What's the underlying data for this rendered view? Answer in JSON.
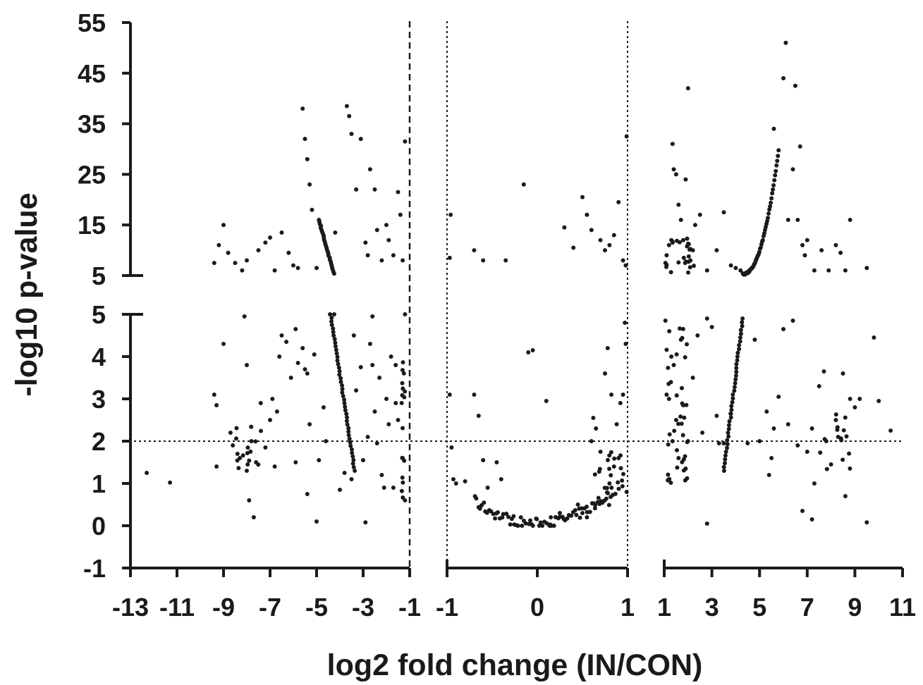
{
  "chart_data": {
    "type": "scatter",
    "title": "",
    "xlabel": "log2 fold change (IN/CON)",
    "ylabel": "-log10 p-value",
    "grid": false,
    "legend": "none",
    "point_color": "#1a1a1a",
    "x_panels": [
      {
        "xlim": [
          -13,
          -1
        ],
        "ticks": [
          -13,
          -11,
          -9,
          -7,
          -5,
          -3,
          -1
        ]
      },
      {
        "xlim": [
          -1,
          1
        ],
        "ticks": [
          -1,
          0,
          1
        ]
      },
      {
        "xlim": [
          1,
          11
        ],
        "ticks": [
          1,
          3,
          5,
          7,
          9,
          11
        ]
      }
    ],
    "y_segments": [
      {
        "ylim": [
          -1,
          5
        ],
        "ticks": [
          -1,
          0,
          1,
          2,
          3,
          4,
          5
        ]
      },
      {
        "ylim": [
          5,
          55
        ],
        "ticks": [
          5,
          15,
          25,
          35,
          45,
          55
        ]
      }
    ],
    "y_tick_labels": [
      "-1",
      "0",
      "1",
      "2",
      "3",
      "4",
      "5",
      "5",
      "15",
      "25",
      "35",
      "45",
      "55"
    ],
    "x_tick_labels": [
      "-13",
      "-11",
      "-9",
      "-7",
      "-5",
      "-3",
      "-1",
      "-1",
      "0",
      "1",
      "1",
      "3",
      "5",
      "7",
      "9",
      "11"
    ],
    "reference_lines": {
      "horizontal_y": 2,
      "vertical_x": [
        -1,
        1
      ],
      "horizontal_style": "dotted",
      "vertical_style": "dotted; dashed at left panel edge x=-1"
    },
    "series": [
      {
        "points": [
          [
            -12.3,
            1.25
          ],
          [
            -11.3,
            1.02
          ],
          [
            -9.4,
            3.1
          ],
          [
            -9.3,
            2.85
          ],
          [
            -9.3,
            1.4
          ],
          [
            -9.0,
            4.3
          ],
          [
            -8.7,
            2.2
          ],
          [
            -8.6,
            1.9
          ],
          [
            -8.4,
            1.7
          ],
          [
            -8.3,
            1.6
          ],
          [
            -8.1,
            4.95
          ],
          [
            -8.0,
            3.8
          ],
          [
            -8.0,
            1.3
          ],
          [
            -7.9,
            0.6
          ],
          [
            -7.8,
            2.0
          ],
          [
            -7.7,
            0.2
          ],
          [
            -7.6,
            1.5
          ],
          [
            -7.4,
            2.9
          ],
          [
            -7.2,
            1.85
          ],
          [
            -7.0,
            2.5
          ],
          [
            -6.9,
            3.0
          ],
          [
            -6.8,
            1.4
          ],
          [
            -6.7,
            2.7
          ],
          [
            -6.6,
            4.0
          ],
          [
            -6.5,
            4.5
          ],
          [
            -6.3,
            4.35
          ],
          [
            -6.1,
            3.5
          ],
          [
            -5.9,
            4.65
          ],
          [
            -5.9,
            1.5
          ],
          [
            -5.8,
            3.85
          ],
          [
            -5.6,
            4.2
          ],
          [
            -5.5,
            3.7
          ],
          [
            -5.4,
            3.6
          ],
          [
            -5.4,
            0.75
          ],
          [
            -5.3,
            2.4
          ],
          [
            -5.1,
            4.05
          ],
          [
            -5.0,
            0.1
          ],
          [
            -4.9,
            1.55
          ],
          [
            -4.7,
            2.8
          ],
          [
            -4.6,
            2.0
          ],
          [
            -4.0,
            0.85
          ],
          [
            -3.8,
            1.25
          ],
          [
            -3.5,
            1.1
          ],
          [
            -3.4,
            4.5
          ],
          [
            -3.3,
            3.2
          ],
          [
            -3.1,
            3.75
          ],
          [
            -3.0,
            1.55
          ],
          [
            -2.9,
            0.08
          ],
          [
            -2.8,
            2.1
          ],
          [
            -2.7,
            4.3
          ],
          [
            -2.6,
            4.95
          ],
          [
            -2.6,
            3.8
          ],
          [
            -2.5,
            2.7
          ],
          [
            -2.4,
            1.95
          ],
          [
            -2.3,
            3.5
          ],
          [
            -2.2,
            1.2
          ],
          [
            -2.1,
            0.9
          ],
          [
            -2.0,
            3.0
          ],
          [
            -1.9,
            2.4
          ],
          [
            -1.8,
            4.0
          ],
          [
            -1.7,
            0.9
          ],
          [
            -1.6,
            3.8
          ],
          [
            -1.6,
            2.9
          ],
          [
            -1.5,
            2.5
          ],
          [
            -1.3,
            1.6
          ],
          [
            -1.2,
            0.6
          ],
          [
            -9.4,
            7.5
          ],
          [
            -9.2,
            11
          ],
          [
            -9.0,
            15
          ],
          [
            -8.8,
            9.5
          ],
          [
            -8.5,
            7.5
          ],
          [
            -8.2,
            6
          ],
          [
            -8.0,
            8
          ],
          [
            -7.5,
            10
          ],
          [
            -7.2,
            11.5
          ],
          [
            -7.0,
            12.5
          ],
          [
            -6.8,
            6
          ],
          [
            -6.5,
            13.5
          ],
          [
            -6.2,
            9.5
          ],
          [
            -6.0,
            7
          ],
          [
            -5.8,
            6.5
          ],
          [
            -5.6,
            38
          ],
          [
            -5.5,
            32
          ],
          [
            -5.4,
            28
          ],
          [
            -5.3,
            23
          ],
          [
            -5.2,
            18
          ],
          [
            -5.0,
            6.5
          ],
          [
            -4.2,
            13.5
          ],
          [
            -3.7,
            38.5
          ],
          [
            -3.6,
            36.5
          ],
          [
            -3.5,
            33
          ],
          [
            -3.3,
            22
          ],
          [
            -3.1,
            32
          ],
          [
            -2.9,
            11.5
          ],
          [
            -2.8,
            9
          ],
          [
            -2.7,
            26
          ],
          [
            -2.5,
            22
          ],
          [
            -2.4,
            14
          ],
          [
            -2.2,
            8
          ],
          [
            -2.0,
            15
          ],
          [
            -1.9,
            12
          ],
          [
            -1.7,
            9
          ],
          [
            -1.5,
            21.5
          ],
          [
            -1.4,
            17
          ],
          [
            -1.3,
            8
          ],
          [
            -1.2,
            31.5
          ],
          [
            -1.2,
            5
          ],
          [
            -0.96,
            17
          ],
          [
            -0.97,
            8.5
          ],
          [
            -0.7,
            10
          ],
          [
            -0.6,
            8
          ],
          [
            -0.35,
            8
          ],
          [
            -0.15,
            23
          ],
          [
            0.3,
            14.5
          ],
          [
            0.4,
            10.5
          ],
          [
            0.5,
            20.5
          ],
          [
            0.55,
            17
          ],
          [
            0.6,
            14
          ],
          [
            0.7,
            12
          ],
          [
            0.75,
            10
          ],
          [
            0.8,
            11
          ],
          [
            0.85,
            13
          ],
          [
            0.9,
            19.5
          ],
          [
            0.95,
            8
          ],
          [
            0.98,
            7
          ],
          [
            0.99,
            32.5
          ],
          [
            1.05,
            7.5
          ],
          [
            1.1,
            9
          ],
          [
            1.2,
            11
          ],
          [
            1.3,
            12
          ],
          [
            1.35,
            31
          ],
          [
            1.4,
            26
          ],
          [
            1.5,
            25
          ],
          [
            1.6,
            19
          ],
          [
            1.7,
            16
          ],
          [
            1.8,
            12
          ],
          [
            1.9,
            24
          ],
          [
            2.0,
            42
          ],
          [
            2.1,
            8
          ],
          [
            2.2,
            10
          ],
          [
            2.3,
            15
          ],
          [
            2.5,
            17
          ],
          [
            2.8,
            6
          ],
          [
            3.2,
            10
          ],
          [
            3.5,
            17.5
          ],
          [
            3.8,
            7
          ],
          [
            4.0,
            6.5
          ],
          [
            4.2,
            6
          ],
          [
            5.6,
            34
          ],
          [
            6.0,
            44
          ],
          [
            6.1,
            51
          ],
          [
            6.2,
            16
          ],
          [
            6.4,
            26
          ],
          [
            6.5,
            42.5
          ],
          [
            6.6,
            16
          ],
          [
            6.8,
            11
          ],
          [
            6.9,
            9
          ],
          [
            7.0,
            12
          ],
          [
            7.3,
            6
          ],
          [
            7.6,
            10
          ],
          [
            7.9,
            6
          ],
          [
            8.2,
            11
          ],
          [
            8.4,
            9.5
          ],
          [
            8.6,
            6
          ],
          [
            8.8,
            16
          ],
          [
            9.5,
            6.5
          ],
          [
            6.7,
            30.5
          ],
          [
            -0.97,
            3.1
          ],
          [
            -0.95,
            1.85
          ],
          [
            -0.93,
            1.1
          ],
          [
            -0.9,
            1.0
          ],
          [
            -0.8,
            1.05
          ],
          [
            -0.7,
            3.1
          ],
          [
            -0.65,
            2.6
          ],
          [
            -0.6,
            1.55
          ],
          [
            -0.55,
            0.9
          ],
          [
            -0.45,
            1.5
          ],
          [
            -0.4,
            1.1
          ],
          [
            -0.1,
            4.1
          ],
          [
            -0.05,
            4.15
          ],
          [
            0.1,
            2.95
          ],
          [
            0.15,
            0.2
          ],
          [
            0.25,
            0.3
          ],
          [
            0.35,
            0.25
          ],
          [
            0.45,
            0.5
          ],
          [
            0.5,
            0.3
          ],
          [
            0.55,
            0.2
          ],
          [
            0.6,
            2.0
          ],
          [
            0.62,
            2.55
          ],
          [
            0.65,
            2.3
          ],
          [
            0.7,
            1.75
          ],
          [
            0.75,
            3.6
          ],
          [
            0.78,
            4.2
          ],
          [
            0.8,
            1.0
          ],
          [
            0.82,
            3.1
          ],
          [
            0.85,
            1.4
          ],
          [
            0.88,
            2.4
          ],
          [
            0.9,
            1.6
          ],
          [
            0.92,
            2.9
          ],
          [
            0.95,
            3.1
          ],
          [
            0.97,
            4.8
          ],
          [
            0.98,
            4.3
          ],
          [
            0.99,
            0.8
          ],
          [
            1.05,
            4.85
          ],
          [
            1.1,
            3.1
          ],
          [
            1.2,
            3.0
          ],
          [
            1.3,
            4.0
          ],
          [
            1.35,
            2.0
          ],
          [
            1.4,
            3.8
          ],
          [
            1.5,
            2.5
          ],
          [
            1.6,
            1.6
          ],
          [
            1.7,
            4.4
          ],
          [
            1.8,
            2.85
          ],
          [
            1.9,
            1.35
          ],
          [
            2.0,
            2.0
          ],
          [
            2.2,
            3.5
          ],
          [
            2.4,
            4.5
          ],
          [
            2.6,
            2.2
          ],
          [
            2.8,
            4.9
          ],
          [
            3.0,
            4.7
          ],
          [
            3.2,
            2.6
          ],
          [
            3.3,
            1.95
          ],
          [
            3.5,
            1.95
          ],
          [
            3.8,
            2.65
          ],
          [
            4.5,
            1.95
          ],
          [
            4.8,
            4.4
          ],
          [
            5.0,
            2.0
          ],
          [
            5.3,
            2.7
          ],
          [
            5.4,
            1.2
          ],
          [
            5.5,
            1.6
          ],
          [
            5.6,
            2.3
          ],
          [
            5.8,
            3.05
          ],
          [
            6.0,
            4.65
          ],
          [
            6.2,
            2.4
          ],
          [
            6.4,
            4.85
          ],
          [
            6.6,
            1.9
          ],
          [
            6.8,
            0.35
          ],
          [
            7.0,
            1.75
          ],
          [
            7.2,
            2.3
          ],
          [
            7.3,
            1.0
          ],
          [
            7.5,
            3.3
          ],
          [
            7.7,
            3.65
          ],
          [
            7.8,
            2.0
          ],
          [
            8.0,
            1.45
          ],
          [
            8.2,
            2.5
          ],
          [
            8.3,
            2.1
          ],
          [
            8.5,
            3.6
          ],
          [
            8.6,
            0.7
          ],
          [
            8.8,
            3.0
          ],
          [
            9.0,
            2.8
          ],
          [
            9.2,
            3.0
          ],
          [
            9.5,
            0.08
          ],
          [
            9.8,
            4.45
          ],
          [
            10.0,
            2.95
          ],
          [
            10.5,
            2.25
          ],
          [
            2.8,
            0.05
          ],
          [
            7.2,
            0.15
          ]
        ]
      }
    ]
  }
}
